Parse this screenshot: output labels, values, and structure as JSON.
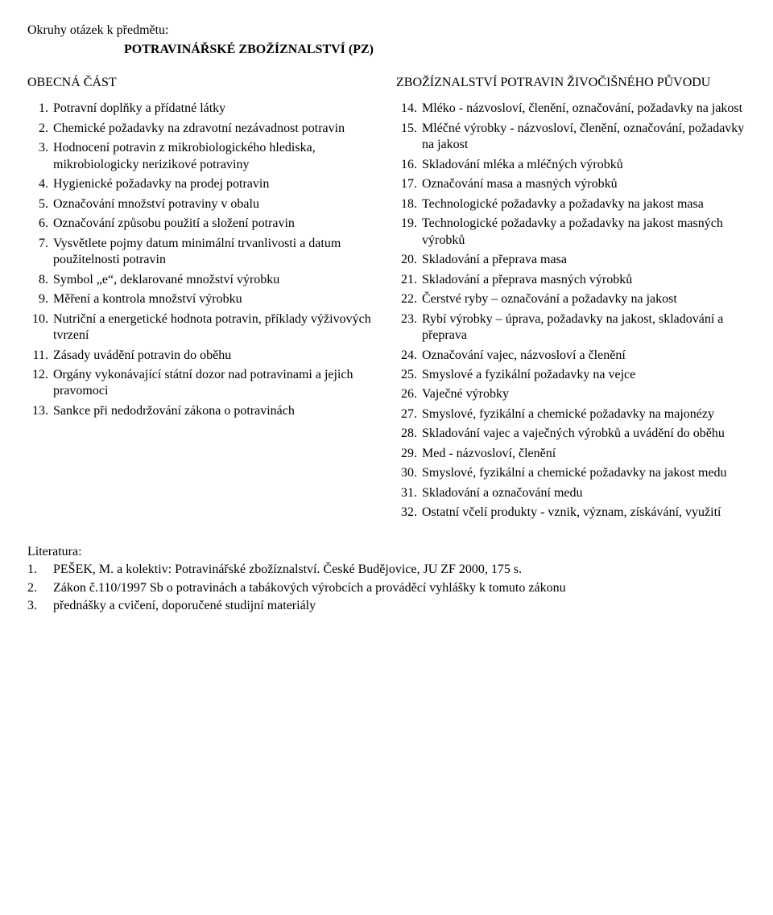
{
  "intro": "Okruhy otázek k předmětu:",
  "title": "POTRAVINÁŘSKÉ ZBOŽÍZNALSTVÍ (PZ)",
  "leftHeading": "OBECNÁ ČÁST",
  "rightHeading": "ZBOŽÍZNALSTVÍ POTRAVIN ŽIVOČIŠNÉHO PŮVODU",
  "leftItems": [
    "Potravní doplňky a přídatné látky",
    "Chemické požadavky na zdravotní nezávadnost potravin",
    "Hodnocení potravin z mikrobiologického hlediska, mikrobiologicky nerizikové potraviny",
    "Hygienické požadavky na prodej potravin",
    "Označování množství potraviny v obalu",
    "Označování způsobu použití a složení potravin",
    "Vysvětlete pojmy datum minimální trvanlivosti a datum použitelnosti potravin",
    "Symbol „e“, deklarované množství výrobku",
    "Měření a kontrola množství výrobku",
    "Nutriční a energetické hodnota potravin, příklady výživových tvrzení",
    "Zásady uvádění potravin do oběhu",
    "Orgány vykonávající státní dozor nad potravinami a jejich pravomoci",
    "Sankce při nedodržování zákona o potravinách"
  ],
  "rightStart": 14,
  "rightItems": [
    "Mléko - názvosloví, členění, označování, požadavky na jakost",
    "Mléčné výrobky - názvosloví, členění, označování, požadavky na jakost",
    "Skladování mléka a mléčných výrobků",
    "Označování masa a masných výrobků",
    "Technologické požadavky a požadavky na jakost masa",
    "Technologické požadavky a požadavky na jakost masných výrobků",
    "Skladování a přeprava masa",
    "Skladování a přeprava masných výrobků",
    "Čerstvé ryby – označování a požadavky na jakost",
    "Rybí výrobky – úprava, požadavky na jakost, skladování a přeprava",
    "Označování vajec, názvosloví a členění",
    "Smyslové a fyzikální požadavky na vejce",
    "Vaječné výrobky",
    "Smyslové, fyzikální a chemické požadavky na majonézy",
    "Skladování vajec a vaječných výrobků a uvádění do oběhu",
    "Med - názvosloví, členění",
    "Smyslové, fyzikální a chemické požadavky na jakost medu",
    "Skladování a označování medu",
    "Ostatní včelí produkty - vznik, význam, získávání, využití"
  ],
  "litHeading": "Literatura:",
  "litItems": [
    "PEŠEK, M. a kolektiv: Potravinářské zbožíznalství. České Budějovice, JU ZF 2000, 175 s.",
    "Zákon č.110/1997 Sb o potravinách a tabákových výrobcích a prováděcí vyhlášky k tomuto zákonu",
    "přednášky a cvičení, doporučené studijní materiály"
  ]
}
